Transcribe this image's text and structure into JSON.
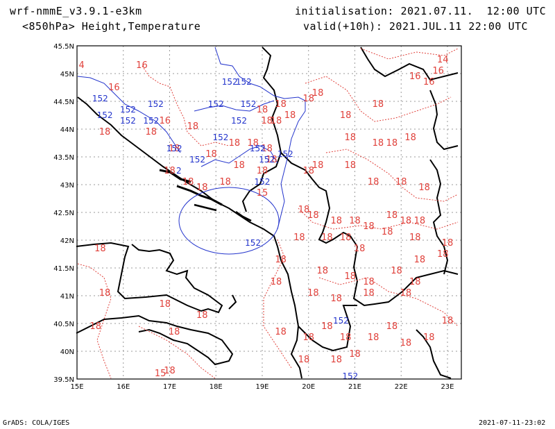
{
  "header": {
    "model": "wrf-nmmE_v3.9.1-e3km",
    "level_fields": "<850hPa> Height,Temperature",
    "initialisation": "initialisation: 2021.07.11.  12:00 UTC",
    "valid": "valid(+10h): 2021.JUL.11 22:00 UTC"
  },
  "footer": {
    "left": "GrADS: COLA/IGES",
    "right": "2021-07-11-23:02"
  },
  "map": {
    "lat_labels": [
      "45.5N",
      "45N",
      "44.5N",
      "44N",
      "43.5N",
      "43N",
      "42.5N",
      "42N",
      "41.5N",
      "41N",
      "40.5N",
      "40N",
      "39.5N"
    ],
    "lon_labels": [
      "15E",
      "16E",
      "17E",
      "18E",
      "19E",
      "20E",
      "21E",
      "22E",
      "23E"
    ],
    "colors": {
      "temperature": "#e0403a",
      "height": "#2233cc",
      "coast": "#000000",
      "grid": "#9a9a9a"
    },
    "temp_labels": [
      {
        "t": "16",
        "lon": 16.4,
        "lat": 45.1
      },
      {
        "t": "4",
        "lon": 15.1,
        "lat": 45.1
      },
      {
        "t": "16",
        "lon": 15.8,
        "lat": 44.7
      },
      {
        "t": "16",
        "lon": 22.3,
        "lat": 44.9
      },
      {
        "t": "16",
        "lon": 22.6,
        "lat": 44.8
      },
      {
        "t": "16",
        "lon": 22.8,
        "lat": 45.0
      },
      {
        "t": "14",
        "lon": 22.9,
        "lat": 45.2
      },
      {
        "t": "16",
        "lon": 16.9,
        "lat": 44.1
      },
      {
        "t": "18",
        "lon": 15.6,
        "lat": 43.9
      },
      {
        "t": "18",
        "lon": 16.6,
        "lat": 43.9
      },
      {
        "t": "18",
        "lon": 17.5,
        "lat": 44.0
      },
      {
        "t": "18",
        "lon": 17.1,
        "lat": 43.6
      },
      {
        "t": "18",
        "lon": 17.9,
        "lat": 43.5
      },
      {
        "t": "18",
        "lon": 17.0,
        "lat": 43.2
      },
      {
        "t": "18",
        "lon": 17.4,
        "lat": 43.0
      },
      {
        "t": "18",
        "lon": 17.7,
        "lat": 42.9
      },
      {
        "t": "18",
        "lon": 18.2,
        "lat": 43.0
      },
      {
        "t": "18",
        "lon": 18.5,
        "lat": 43.3
      },
      {
        "t": "18",
        "lon": 18.4,
        "lat": 43.7
      },
      {
        "t": "18",
        "lon": 18.8,
        "lat": 43.7
      },
      {
        "t": "18",
        "lon": 19.1,
        "lat": 43.6
      },
      {
        "t": "18",
        "lon": 19.0,
        "lat": 43.2
      },
      {
        "t": "18",
        "lon": 19.2,
        "lat": 43.4
      },
      {
        "t": "15",
        "lon": 19.0,
        "lat": 42.8
      },
      {
        "t": "18",
        "lon": 19.1,
        "lat": 44.1
      },
      {
        "t": "18",
        "lon": 19.3,
        "lat": 44.1
      },
      {
        "t": "18",
        "lon": 19.6,
        "lat": 44.2
      },
      {
        "t": "18",
        "lon": 19.0,
        "lat": 44.3
      },
      {
        "t": "18",
        "lon": 19.4,
        "lat": 44.4
      },
      {
        "t": "18",
        "lon": 20.0,
        "lat": 44.5
      },
      {
        "t": "18",
        "lon": 20.2,
        "lat": 44.6
      },
      {
        "t": "18",
        "lon": 20.8,
        "lat": 44.2
      },
      {
        "t": "18",
        "lon": 21.5,
        "lat": 44.4
      },
      {
        "t": "18",
        "lon": 20.9,
        "lat": 43.8
      },
      {
        "t": "18",
        "lon": 21.5,
        "lat": 43.7
      },
      {
        "t": "18",
        "lon": 21.8,
        "lat": 43.7
      },
      {
        "t": "18",
        "lon": 22.2,
        "lat": 43.8
      },
      {
        "t": "18",
        "lon": 20.0,
        "lat": 43.2
      },
      {
        "t": "18",
        "lon": 20.2,
        "lat": 43.3
      },
      {
        "t": "18",
        "lon": 20.9,
        "lat": 43.3
      },
      {
        "t": "18",
        "lon": 21.4,
        "lat": 43.0
      },
      {
        "t": "18",
        "lon": 22.0,
        "lat": 43.0
      },
      {
        "t": "18",
        "lon": 22.5,
        "lat": 42.9
      },
      {
        "t": "18",
        "lon": 19.9,
        "lat": 42.5
      },
      {
        "t": "18",
        "lon": 20.1,
        "lat": 42.4
      },
      {
        "t": "18",
        "lon": 20.6,
        "lat": 42.3
      },
      {
        "t": "18",
        "lon": 21.0,
        "lat": 42.3
      },
      {
        "t": "18",
        "lon": 21.3,
        "lat": 42.2
      },
      {
        "t": "18",
        "lon": 21.8,
        "lat": 42.4
      },
      {
        "t": "18",
        "lon": 22.1,
        "lat": 42.3
      },
      {
        "t": "18",
        "lon": 22.4,
        "lat": 42.3
      },
      {
        "t": "18",
        "lon": 19.8,
        "lat": 42.0
      },
      {
        "t": "18",
        "lon": 20.4,
        "lat": 42.0
      },
      {
        "t": "18",
        "lon": 20.8,
        "lat": 42.0
      },
      {
        "t": "18",
        "lon": 21.1,
        "lat": 41.8
      },
      {
        "t": "18",
        "lon": 21.7,
        "lat": 42.1
      },
      {
        "t": "18",
        "lon": 22.3,
        "lat": 42.0
      },
      {
        "t": "18",
        "lon": 23.0,
        "lat": 41.9
      },
      {
        "t": "18",
        "lon": 19.4,
        "lat": 41.6
      },
      {
        "t": "18",
        "lon": 20.3,
        "lat": 41.4
      },
      {
        "t": "18",
        "lon": 20.9,
        "lat": 41.3
      },
      {
        "t": "18",
        "lon": 21.3,
        "lat": 41.2
      },
      {
        "t": "18",
        "lon": 21.9,
        "lat": 41.4
      },
      {
        "t": "18",
        "lon": 22.4,
        "lat": 41.6
      },
      {
        "t": "18",
        "lon": 22.9,
        "lat": 41.7
      },
      {
        "t": "18",
        "lon": 15.5,
        "lat": 41.8
      },
      {
        "t": "18",
        "lon": 15.6,
        "lat": 41.0
      },
      {
        "t": "18",
        "lon": 16.9,
        "lat": 40.8
      },
      {
        "t": "18",
        "lon": 17.7,
        "lat": 40.6
      },
      {
        "t": "18",
        "lon": 19.3,
        "lat": 41.2
      },
      {
        "t": "18",
        "lon": 20.1,
        "lat": 41.0
      },
      {
        "t": "18",
        "lon": 20.6,
        "lat": 40.9
      },
      {
        "t": "18",
        "lon": 21.3,
        "lat": 41.0
      },
      {
        "t": "18",
        "lon": 22.1,
        "lat": 41.0
      },
      {
        "t": "18",
        "lon": 22.3,
        "lat": 41.2
      },
      {
        "t": "18",
        "lon": 15.4,
        "lat": 40.4
      },
      {
        "t": "18",
        "lon": 17.1,
        "lat": 40.3
      },
      {
        "t": "18",
        "lon": 19.4,
        "lat": 40.3
      },
      {
        "t": "18",
        "lon": 20.0,
        "lat": 40.2
      },
      {
        "t": "18",
        "lon": 20.4,
        "lat": 40.4
      },
      {
        "t": "18",
        "lon": 20.8,
        "lat": 40.2
      },
      {
        "t": "18",
        "lon": 21.4,
        "lat": 40.2
      },
      {
        "t": "18",
        "lon": 21.8,
        "lat": 40.4
      },
      {
        "t": "18",
        "lon": 22.1,
        "lat": 40.1
      },
      {
        "t": "18",
        "lon": 22.6,
        "lat": 40.2
      },
      {
        "t": "18",
        "lon": 23.0,
        "lat": 40.5
      },
      {
        "t": "18",
        "lon": 19.9,
        "lat": 39.8
      },
      {
        "t": "18",
        "lon": 20.6,
        "lat": 39.8
      },
      {
        "t": "18",
        "lon": 21.0,
        "lat": 39.9
      },
      {
        "t": "15",
        "lon": 16.8,
        "lat": 39.55
      },
      {
        "t": "18",
        "lon": 17.0,
        "lat": 39.6
      }
    ],
    "height_labels": [
      {
        "t": "152",
        "lon": 15.5,
        "lat": 44.5
      },
      {
        "t": "152",
        "lon": 15.6,
        "lat": 44.2
      },
      {
        "t": "152",
        "lon": 16.1,
        "lat": 44.3
      },
      {
        "t": "152",
        "lon": 16.7,
        "lat": 44.4
      },
      {
        "t": "152",
        "lon": 16.6,
        "lat": 44.1
      },
      {
        "t": "152",
        "lon": 16.1,
        "lat": 44.1
      },
      {
        "t": "152",
        "lon": 18.0,
        "lat": 44.4
      },
      {
        "t": "152",
        "lon": 18.3,
        "lat": 44.8
      },
      {
        "t": "152",
        "lon": 18.6,
        "lat": 44.8
      },
      {
        "t": "152",
        "lon": 18.7,
        "lat": 44.4
      },
      {
        "t": "152",
        "lon": 18.1,
        "lat": 43.8
      },
      {
        "t": "152",
        "lon": 18.5,
        "lat": 44.1
      },
      {
        "t": "152",
        "lon": 18.9,
        "lat": 43.6
      },
      {
        "t": "152",
        "lon": 19.1,
        "lat": 43.4
      },
      {
        "t": "152",
        "lon": 19.5,
        "lat": 43.5
      },
      {
        "t": "152",
        "lon": 17.1,
        "lat": 43.6
      },
      {
        "t": "152",
        "lon": 17.6,
        "lat": 43.4
      },
      {
        "t": "152",
        "lon": 19.0,
        "lat": 43.0
      },
      {
        "t": "152",
        "lon": 18.8,
        "lat": 41.9
      },
      {
        "t": "152",
        "lon": 20.7,
        "lat": 40.5
      },
      {
        "t": "152",
        "lon": 20.9,
        "lat": 39.5
      },
      {
        "t": "2",
        "lon": 17.2,
        "lat": 43.2
      }
    ]
  }
}
